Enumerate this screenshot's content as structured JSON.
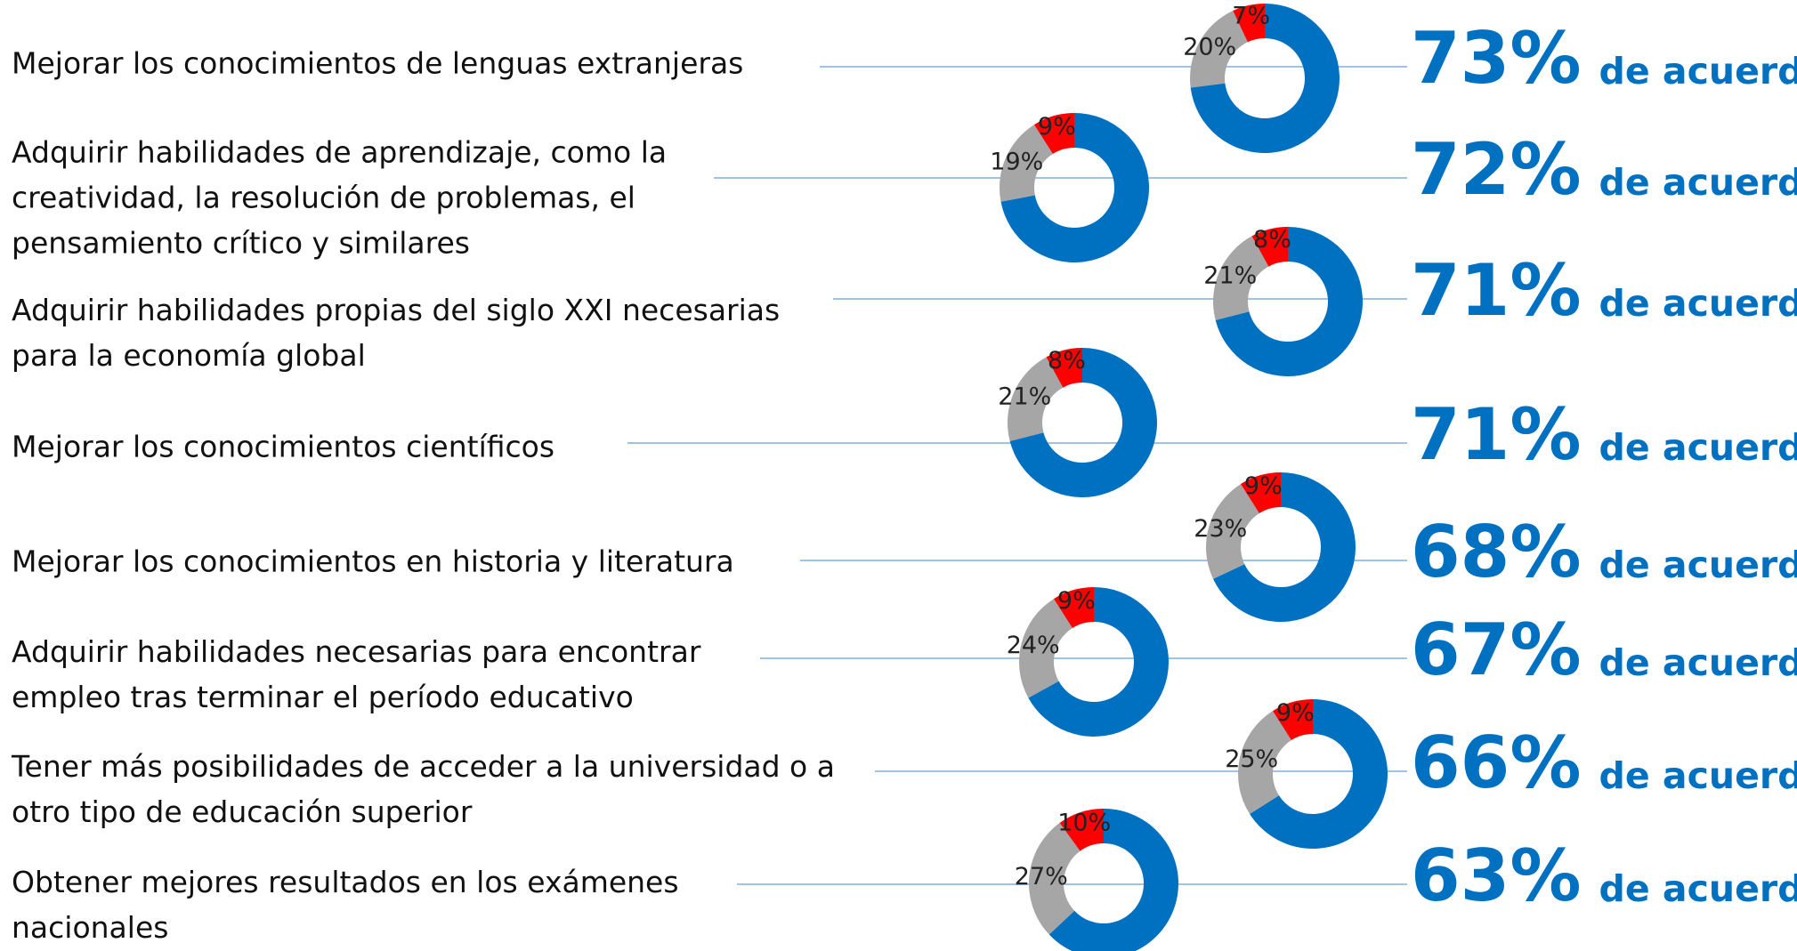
{
  "chart_data": [
    {
      "type": "donut",
      "title": "Mejorar los conocimientos de lenguas extranjeras",
      "values": [
        73,
        20,
        7
      ],
      "value_labels": [
        "73%",
        "20%",
        "7%"
      ],
      "colors": [
        "#0070c0",
        "#a6a6a6",
        "#ff0000"
      ],
      "annotation": "de acuerdo"
    },
    {
      "type": "donut",
      "title": "Adquirir habilidades de aprendizaje, como la creatividad, la resolución de problemas, el pensamiento crítico y similares",
      "values": [
        72,
        19,
        9
      ],
      "value_labels": [
        "72%",
        "19%",
        "9%"
      ],
      "colors": [
        "#0070c0",
        "#a6a6a6",
        "#ff0000"
      ],
      "annotation": "de acuerdo"
    },
    {
      "type": "donut",
      "title": "Adquirir habilidades propias del siglo XXI necesarias para la economía global",
      "values": [
        71,
        21,
        8
      ],
      "value_labels": [
        "71%",
        "21%",
        "8%"
      ],
      "colors": [
        "#0070c0",
        "#a6a6a6",
        "#ff0000"
      ],
      "annotation": "de acuerdo"
    },
    {
      "type": "donut",
      "title": "Mejorar los conocimientos científicos",
      "values": [
        71,
        21,
        8
      ],
      "value_labels": [
        "71%",
        "21%",
        "8%"
      ],
      "colors": [
        "#0070c0",
        "#a6a6a6",
        "#ff0000"
      ],
      "annotation": "de acuerdo"
    },
    {
      "type": "donut",
      "title": "Mejorar los conocimientos en historia y literatura",
      "values": [
        68,
        23,
        9
      ],
      "value_labels": [
        "68%",
        "23%",
        "9%"
      ],
      "colors": [
        "#0070c0",
        "#a6a6a6",
        "#ff0000"
      ],
      "annotation": "de acuerdo"
    },
    {
      "type": "donut",
      "title": "Adquirir habilidades necesarias para encontrar empleo tras terminar el período educativo",
      "values": [
        67,
        24,
        9
      ],
      "value_labels": [
        "67%",
        "24%",
        "9%"
      ],
      "colors": [
        "#0070c0",
        "#a6a6a6",
        "#ff0000"
      ],
      "annotation": "de acuerdo"
    },
    {
      "type": "donut",
      "title": "Tener más posibilidades de acceder a la universidad o a otro tipo de educación superior",
      "values": [
        66,
        25,
        9
      ],
      "value_labels": [
        "66%",
        "25%",
        "9%"
      ],
      "colors": [
        "#0070c0",
        "#a6a6a6",
        "#ff0000"
      ],
      "annotation": "de acuerdo"
    },
    {
      "type": "donut",
      "title": "Obtener mejores resultados en los exámenes nacionales",
      "values": [
        63,
        27,
        10
      ],
      "value_labels": [
        "63%",
        "27%",
        "10%"
      ],
      "colors": [
        "#0070c0",
        "#a6a6a6",
        "#ff0000"
      ],
      "annotation": "de acuerdo"
    }
  ]
}
